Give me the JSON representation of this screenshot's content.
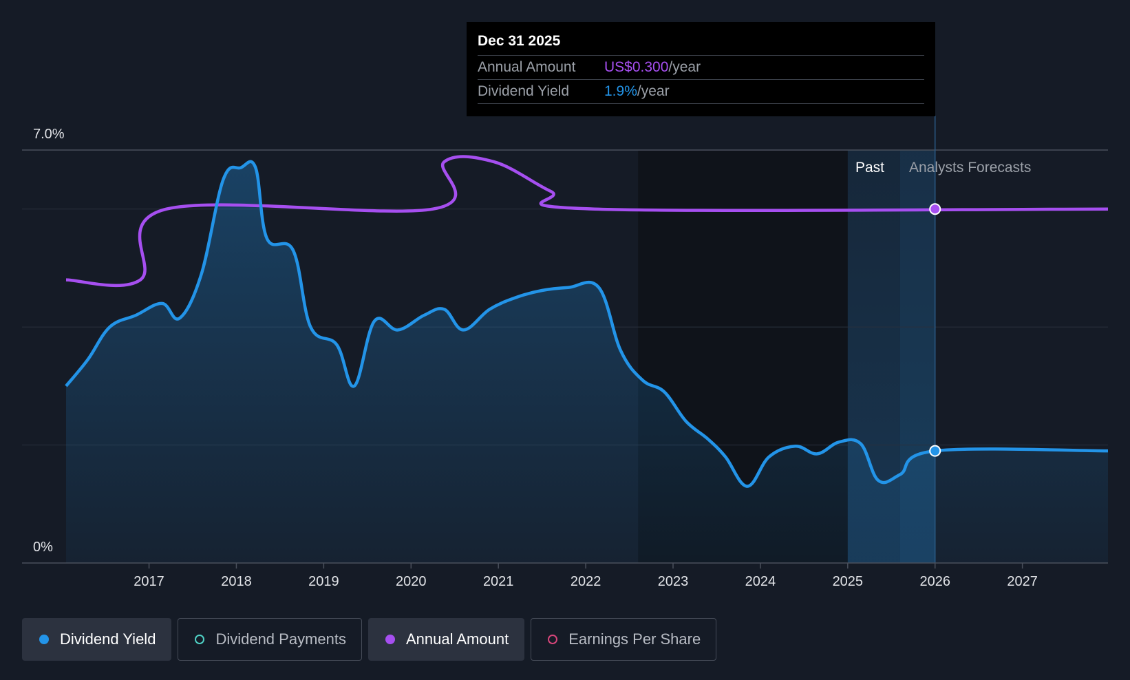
{
  "chart_data": {
    "type": "line",
    "y_axis": {
      "min_label": "0%",
      "max_label": "7.0%",
      "ylim": [
        0,
        7.0
      ]
    },
    "x_axis": {
      "ticks": [
        "2017",
        "2018",
        "2019",
        "2020",
        "2021",
        "2022",
        "2023",
        "2024",
        "2025",
        "2026",
        "2027"
      ],
      "xlim": [
        2016.05,
        2027.98
      ]
    },
    "regions": {
      "past_label": "Past",
      "forecast_label": "Analysts Forecasts"
    },
    "series": [
      {
        "name": "Dividend Yield",
        "color": "#2394e8",
        "points": [
          [
            2016.05,
            3.0
          ],
          [
            2016.3,
            3.45
          ],
          [
            2016.55,
            4.0
          ],
          [
            2016.85,
            4.2
          ],
          [
            2017.15,
            4.4
          ],
          [
            2017.35,
            4.15
          ],
          [
            2017.6,
            4.9
          ],
          [
            2017.85,
            6.5
          ],
          [
            2018.05,
            6.7
          ],
          [
            2018.22,
            6.7
          ],
          [
            2018.35,
            5.5
          ],
          [
            2018.65,
            5.3
          ],
          [
            2018.85,
            4.0
          ],
          [
            2019.15,
            3.7
          ],
          [
            2019.35,
            3.0
          ],
          [
            2019.58,
            4.1
          ],
          [
            2019.85,
            3.95
          ],
          [
            2020.15,
            4.2
          ],
          [
            2020.38,
            4.3
          ],
          [
            2020.6,
            3.95
          ],
          [
            2020.9,
            4.3
          ],
          [
            2021.2,
            4.5
          ],
          [
            2021.5,
            4.62
          ],
          [
            2021.8,
            4.67
          ],
          [
            2022.15,
            4.67
          ],
          [
            2022.4,
            3.6
          ],
          [
            2022.65,
            3.1
          ],
          [
            2022.9,
            2.9
          ],
          [
            2023.15,
            2.4
          ],
          [
            2023.4,
            2.1
          ],
          [
            2023.6,
            1.8
          ],
          [
            2023.85,
            1.3
          ],
          [
            2024.1,
            1.8
          ],
          [
            2024.4,
            1.98
          ],
          [
            2024.65,
            1.85
          ],
          [
            2024.9,
            2.05
          ],
          [
            2025.15,
            2.02
          ],
          [
            2025.35,
            1.4
          ],
          [
            2025.6,
            1.5
          ],
          [
            2026.0,
            1.9
          ],
          [
            2027.98,
            1.9
          ]
        ]
      },
      {
        "name": "Annual Amount",
        "color": "#a64ff0",
        "points": [
          [
            2016.05,
            4.8
          ],
          [
            2016.9,
            4.8
          ],
          [
            2017.2,
            6.0
          ],
          [
            2020.25,
            6.0
          ],
          [
            2020.38,
            6.8
          ],
          [
            2020.95,
            6.8
          ],
          [
            2021.6,
            6.3
          ],
          [
            2022.1,
            6.0
          ],
          [
            2027.98,
            6.0
          ]
        ]
      }
    ],
    "tooltip": {
      "date": "Dec 31 2025",
      "annual_label": "Annual Amount",
      "annual_value": "US$0.300",
      "annual_unit": "/year",
      "yield_label": "Dividend Yield",
      "yield_value": "1.9%",
      "yield_unit": "/year"
    }
  },
  "colors": {
    "background": "#151b26",
    "yield": "#2394e8",
    "annual": "#a64ff0",
    "payments": "#4fd1c5",
    "eps": "#d6457a"
  },
  "legend": [
    {
      "label": "Dividend Yield",
      "active": true,
      "dot_color": "#2394e8",
      "filled": true
    },
    {
      "label": "Dividend Payments",
      "active": false,
      "dot_color": "#4fd1c5",
      "filled": false
    },
    {
      "label": "Annual Amount",
      "active": true,
      "dot_color": "#a64ff0",
      "filled": true
    },
    {
      "label": "Earnings Per Share",
      "active": false,
      "dot_color": "#d6457a",
      "filled": false
    }
  ]
}
